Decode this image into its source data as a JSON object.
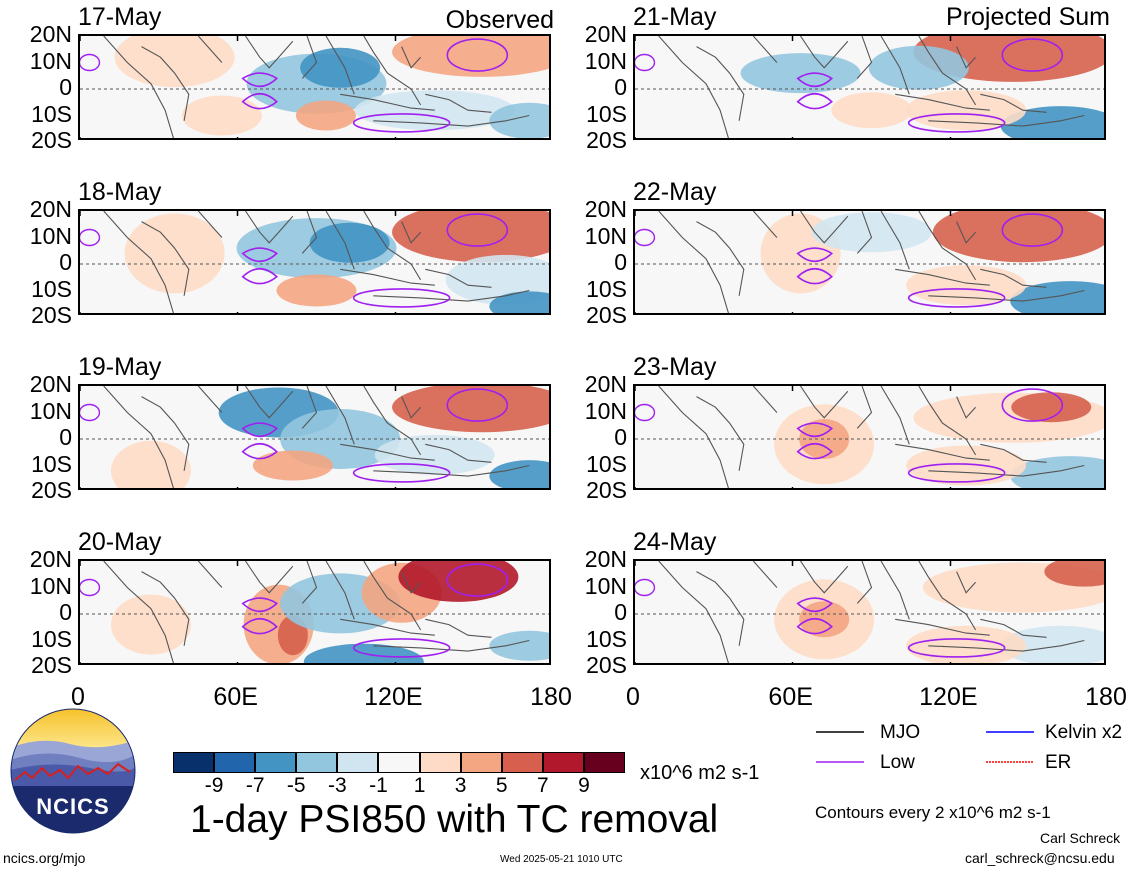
{
  "headers": {
    "left": "Observed",
    "right": "Projected Sum"
  },
  "panels": [
    {
      "date": "17-May",
      "col": 0,
      "row": 0
    },
    {
      "date": "18-May",
      "col": 0,
      "row": 1
    },
    {
      "date": "19-May",
      "col": 0,
      "row": 2
    },
    {
      "date": "20-May",
      "col": 0,
      "row": 3
    },
    {
      "date": "21-May",
      "col": 1,
      "row": 0
    },
    {
      "date": "22-May",
      "col": 1,
      "row": 1
    },
    {
      "date": "23-May",
      "col": 1,
      "row": 2
    },
    {
      "date": "24-May",
      "col": 1,
      "row": 3
    }
  ],
  "lat_labels": [
    "20N",
    "10N",
    "0",
    "10S",
    "20S"
  ],
  "lon_labels": [
    "0",
    "60E",
    "120E",
    "180"
  ],
  "colorbar": {
    "levels": [
      "-9",
      "-7",
      "-5",
      "-3",
      "-1",
      "1",
      "3",
      "5",
      "7",
      "9"
    ],
    "colors": [
      "#08306b",
      "#2166ac",
      "#4393c3",
      "#92c5de",
      "#d1e5f0",
      "#f7f7f7",
      "#fddbc7",
      "#f4a582",
      "#d6604d",
      "#b2182b",
      "#67001f"
    ],
    "units": "x10^6 m2 s-1"
  },
  "title": "1-day PSI850 with TC removal",
  "legend": {
    "items": [
      {
        "label": "MJO",
        "color": "#000000"
      },
      {
        "label": "Kelvin x2",
        "color": "#0000ff"
      },
      {
        "label": "Low",
        "color": "#a020f0"
      },
      {
        "label": "ER",
        "color": "#ff0000"
      }
    ],
    "contours_note": "Contours every 2 x10^6 m2 s-1"
  },
  "logo": {
    "text": "NCICS"
  },
  "footer": {
    "url": "ncics.org/mjo",
    "timestamp": "Wed 2025-05-21 1010 UTC",
    "author": "Carl Schreck",
    "email": "carl_schreck@ncsu.edu"
  }
}
